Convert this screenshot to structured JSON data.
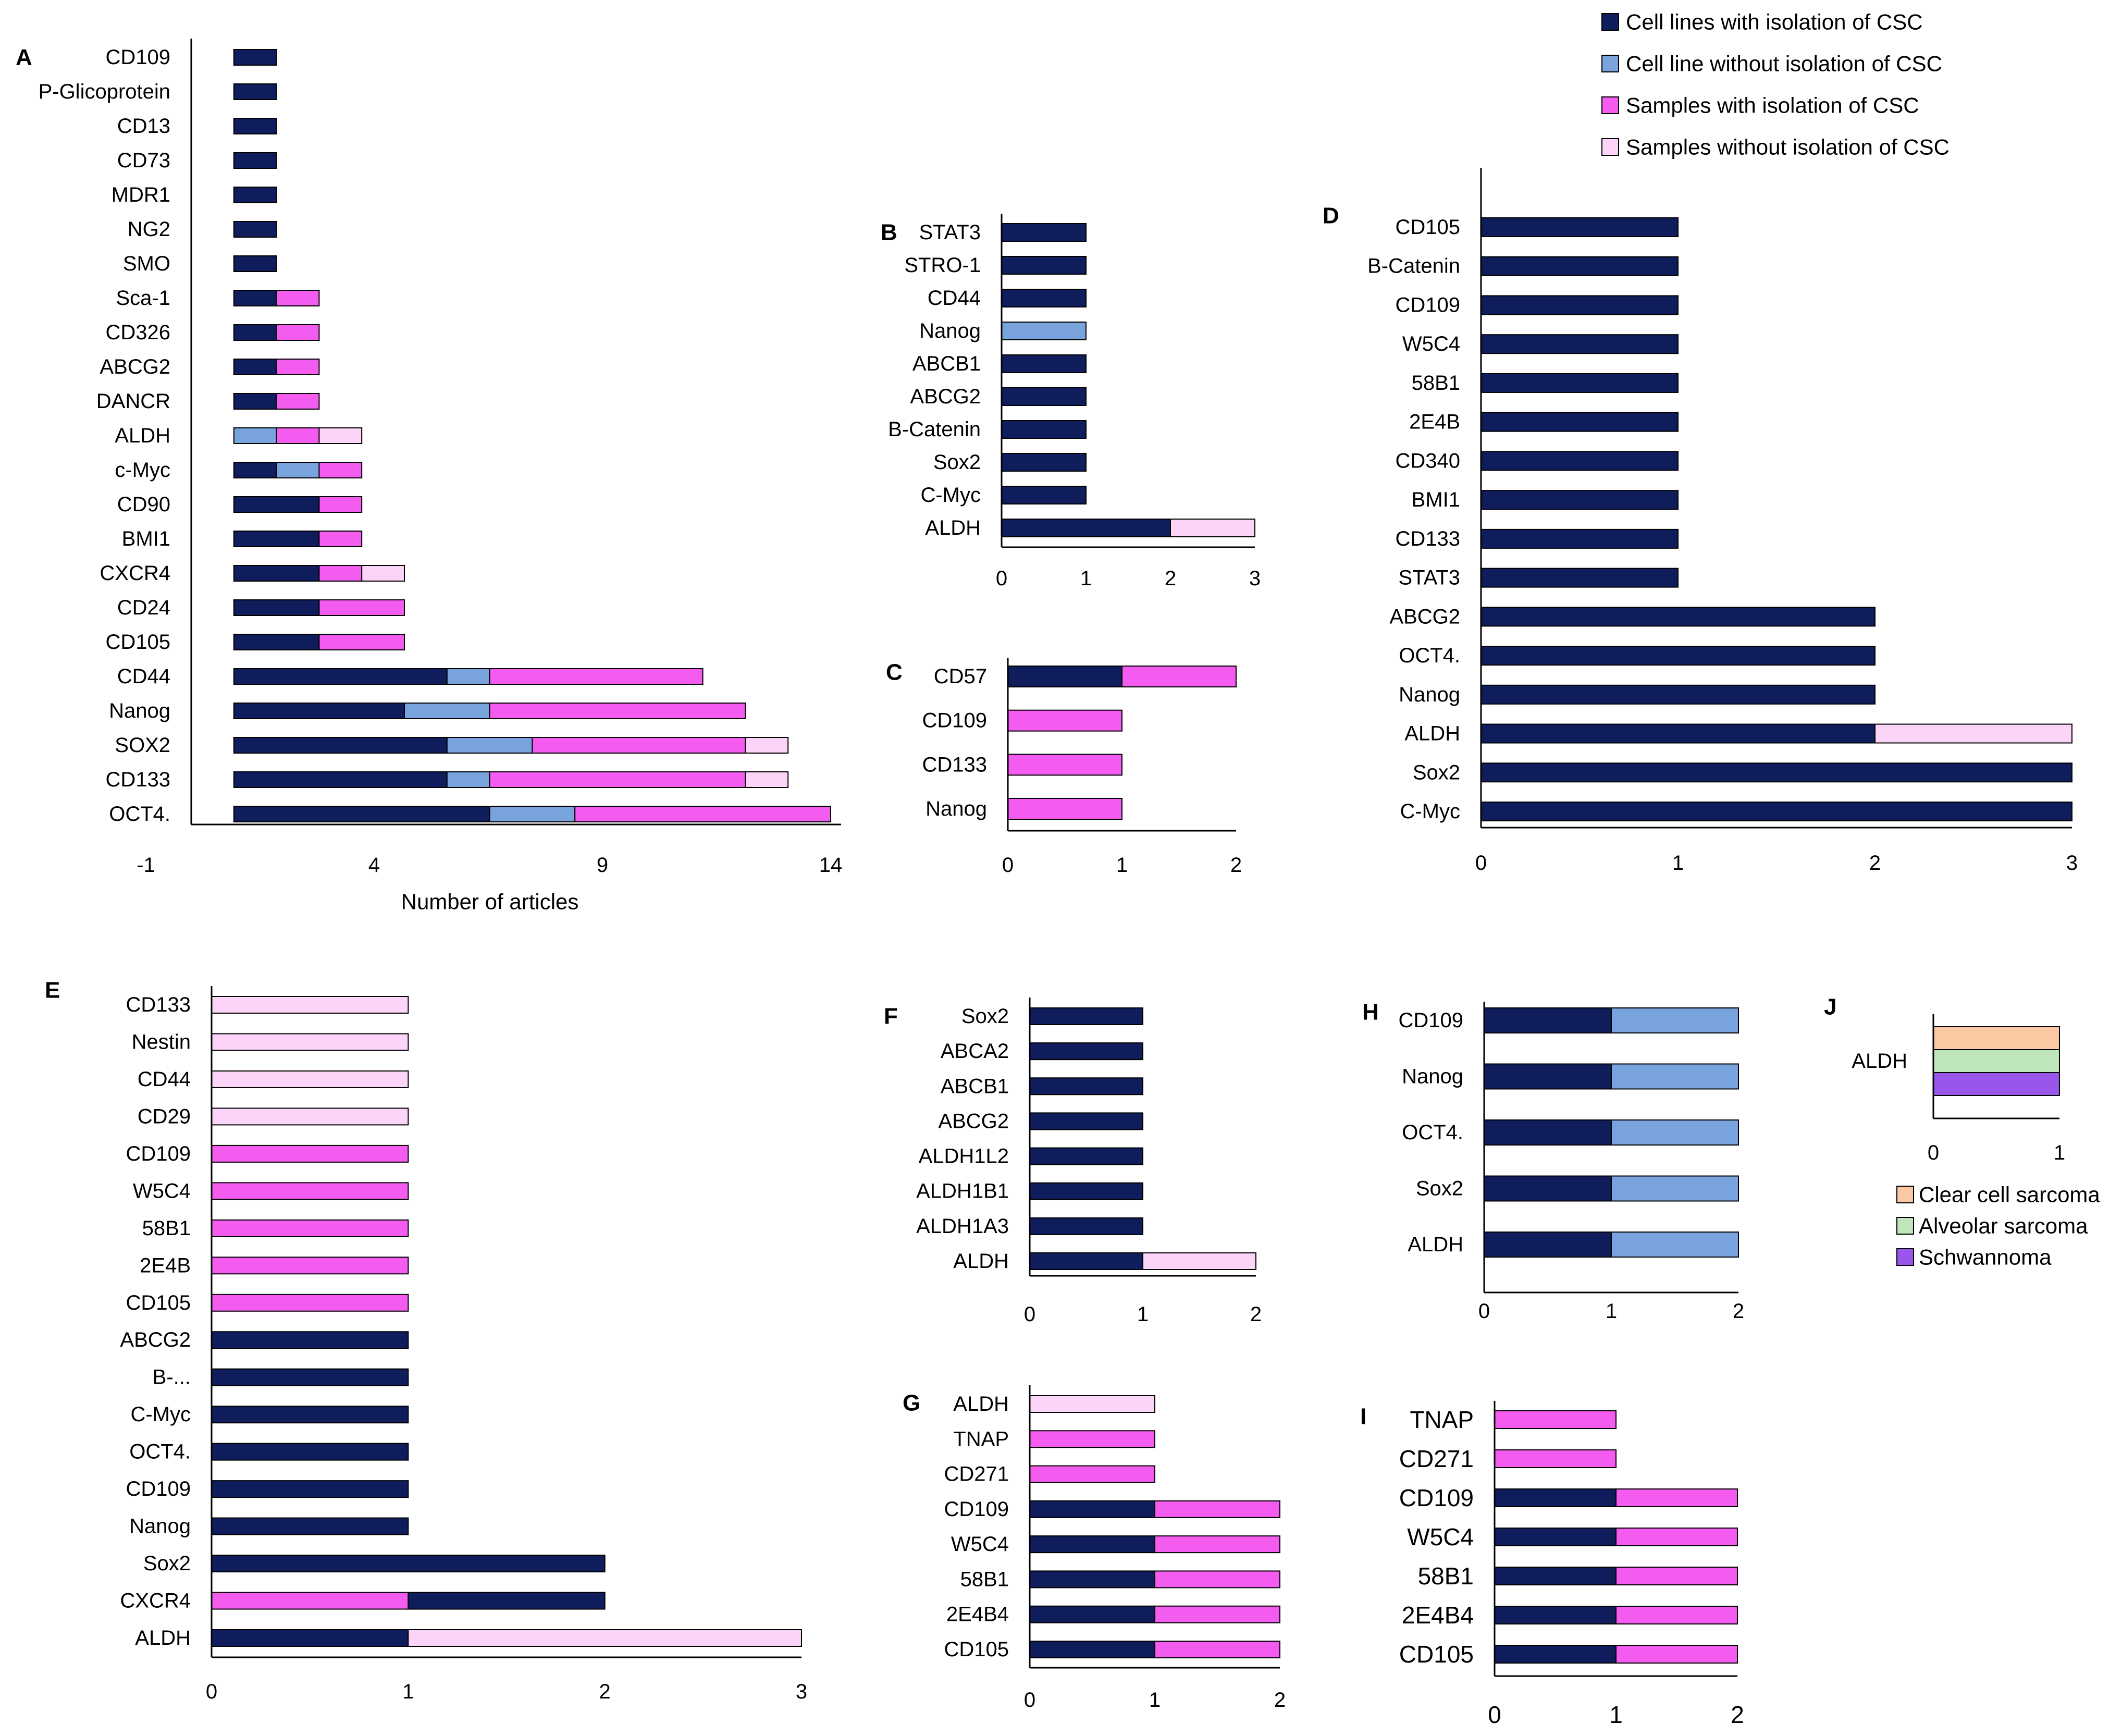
{
  "colors": {
    "cl_iso": "#0f1d5c",
    "cl_no": "#79a3dc",
    "s_iso": "#f45cf0",
    "s_no": "#fbd4f8",
    "clear_cell": "#fbc8a4",
    "alveolar": "#bfe6bb",
    "schwannoma": "#9a55ea",
    "outline": "#000000"
  },
  "legend": {
    "main": [
      {
        "key": "cl_iso",
        "label": "Cell lines with isolation of CSC"
      },
      {
        "key": "cl_no",
        "label": "Cell line without isolation of CSC"
      },
      {
        "key": "s_iso",
        "label": "Samples with isolation of CSC"
      },
      {
        "key": "s_no",
        "label": "Samples without isolation of CSC"
      }
    ],
    "j": [
      {
        "key": "clear_cell",
        "label": "Clear cell sarcoma"
      },
      {
        "key": "alveolar",
        "label": "Alveolar sarcoma"
      },
      {
        "key": "schwannoma",
        "label": "Schwannoma"
      }
    ]
  },
  "chart_data": [
    {
      "panel": "A",
      "type": "bar",
      "orientation": "horizontal",
      "stacked": true,
      "xlabel": "Number of articles",
      "xlim": [
        -1,
        14
      ],
      "xticks": [
        "-1",
        "4",
        "9",
        "14"
      ],
      "categories": [
        "CD109",
        "P-Glicoprotein",
        "CD13",
        "CD73",
        "MDR1",
        "NG2",
        "SMO",
        "Sca-1",
        "CD326",
        "ABCG2",
        "DANCR",
        "ALDH",
        "c-Myc",
        "CD90",
        "BMI1",
        "CXCR4",
        "CD24",
        "CD105",
        "CD44",
        "Nanog",
        "SOX2",
        "CD133",
        "OCT4."
      ],
      "series": [
        {
          "key": "cl_iso",
          "values": [
            1,
            1,
            1,
            1,
            1,
            1,
            1,
            1,
            1,
            1,
            1,
            0,
            1,
            2,
            2,
            2,
            2,
            2,
            5,
            4,
            5,
            5,
            6
          ]
        },
        {
          "key": "cl_no",
          "values": [
            0,
            0,
            0,
            0,
            0,
            0,
            0,
            0,
            0,
            0,
            0,
            1,
            1,
            0,
            0,
            0,
            0,
            0,
            1,
            2,
            2,
            1,
            2
          ]
        },
        {
          "key": "s_iso",
          "values": [
            0,
            0,
            0,
            0,
            0,
            0,
            0,
            1,
            1,
            1,
            1,
            1,
            1,
            1,
            1,
            1,
            2,
            2,
            5,
            6,
            5,
            6,
            6
          ]
        },
        {
          "key": "s_no",
          "values": [
            0,
            0,
            0,
            0,
            0,
            0,
            0,
            0,
            0,
            0,
            0,
            1,
            0,
            0,
            0,
            1,
            0,
            0,
            0,
            0,
            1,
            1,
            0
          ]
        }
      ]
    },
    {
      "panel": "B",
      "type": "bar",
      "orientation": "horizontal",
      "stacked": true,
      "xlim": [
        0,
        3
      ],
      "xticks": [
        "0",
        "1",
        "2",
        "3"
      ],
      "categories": [
        "STAT3",
        "STRO-1",
        "CD44",
        "Nanog",
        "ABCB1",
        "ABCG2",
        "B-Catenin",
        "Sox2",
        "C-Myc",
        "ALDH"
      ],
      "series": [
        {
          "key": "cl_iso",
          "values": [
            1,
            1,
            1,
            0,
            1,
            1,
            1,
            1,
            1,
            2
          ]
        },
        {
          "key": "cl_no",
          "values": [
            0,
            0,
            0,
            1,
            0,
            0,
            0,
            0,
            0,
            0
          ]
        },
        {
          "key": "s_no",
          "values": [
            0,
            0,
            0,
            0,
            0,
            0,
            0,
            0,
            0,
            1
          ]
        }
      ]
    },
    {
      "panel": "C",
      "type": "bar",
      "orientation": "horizontal",
      "stacked": true,
      "xlim": [
        0,
        2
      ],
      "xticks": [
        "0",
        "1",
        "2"
      ],
      "categories": [
        "CD57",
        "CD109",
        "CD133",
        "Nanog"
      ],
      "series": [
        {
          "key": "cl_iso",
          "values": [
            1,
            0,
            0,
            0
          ]
        },
        {
          "key": "s_iso",
          "values": [
            1,
            1,
            1,
            1
          ]
        }
      ]
    },
    {
      "panel": "D",
      "type": "bar",
      "orientation": "horizontal",
      "stacked": true,
      "xlim": [
        0,
        3
      ],
      "xticks": [
        "0",
        "1",
        "2",
        "3"
      ],
      "categories": [
        "CD105",
        "B-Catenin",
        "CD109",
        "W5C4",
        "58B1",
        "2E4B",
        "CD340",
        "BMI1",
        "CD133",
        "STAT3",
        "ABCG2",
        "OCT4.",
        "Nanog",
        "ALDH",
        "Sox2",
        "C-Myc"
      ],
      "series": [
        {
          "key": "cl_iso",
          "values": [
            1,
            1,
            1,
            1,
            1,
            1,
            1,
            1,
            1,
            1,
            2,
            2,
            2,
            2,
            3,
            3
          ]
        },
        {
          "key": "s_no",
          "values": [
            0,
            0,
            0,
            0,
            0,
            0,
            0,
            0,
            0,
            0,
            0,
            0,
            0,
            1,
            0,
            0
          ]
        }
      ]
    },
    {
      "panel": "E",
      "type": "bar",
      "orientation": "horizontal",
      "stacked": true,
      "xlim": [
        0,
        3
      ],
      "xticks": [
        "0",
        "1",
        "2",
        "3"
      ],
      "categories": [
        "CD133",
        "Nestin",
        "CD44",
        "CD29",
        "CD109",
        "W5C4",
        "58B1",
        "2E4B",
        "CD105",
        "ABCG2",
        "B-...",
        "C-Myc",
        "OCT4.",
        "CD109",
        "Nanog",
        "Sox2",
        "CXCR4",
        "ALDH"
      ],
      "segments": [
        [
          [
            "s_no",
            1
          ]
        ],
        [
          [
            "s_no",
            1
          ]
        ],
        [
          [
            "s_no",
            1
          ]
        ],
        [
          [
            "s_no",
            1
          ]
        ],
        [
          [
            "s_iso",
            1
          ]
        ],
        [
          [
            "s_iso",
            1
          ]
        ],
        [
          [
            "s_iso",
            1
          ]
        ],
        [
          [
            "s_iso",
            1
          ]
        ],
        [
          [
            "s_iso",
            1
          ]
        ],
        [
          [
            "cl_iso",
            1
          ]
        ],
        [
          [
            "cl_iso",
            1
          ]
        ],
        [
          [
            "cl_iso",
            1
          ]
        ],
        [
          [
            "cl_iso",
            1
          ]
        ],
        [
          [
            "cl_iso",
            1
          ]
        ],
        [
          [
            "cl_iso",
            1
          ]
        ],
        [
          [
            "cl_iso",
            2
          ]
        ],
        [
          [
            "s_iso",
            1
          ],
          [
            "cl_iso",
            1
          ]
        ],
        [
          [
            "cl_iso",
            1
          ],
          [
            "s_no",
            2
          ]
        ]
      ]
    },
    {
      "panel": "F",
      "type": "bar",
      "orientation": "horizontal",
      "stacked": true,
      "xlim": [
        0,
        2
      ],
      "xticks": [
        "0",
        "1",
        "2"
      ],
      "categories": [
        "Sox2",
        "ABCA2",
        "ABCB1",
        "ABCG2",
        "ALDH1L2",
        "ALDH1B1",
        "ALDH1A3",
        "ALDH"
      ],
      "series": [
        {
          "key": "cl_iso",
          "values": [
            1,
            1,
            1,
            1,
            1,
            1,
            1,
            1
          ]
        },
        {
          "key": "s_no",
          "values": [
            0,
            0,
            0,
            0,
            0,
            0,
            0,
            1
          ]
        }
      ]
    },
    {
      "panel": "G",
      "type": "bar",
      "orientation": "horizontal",
      "stacked": true,
      "xlim": [
        0,
        2
      ],
      "xticks": [
        "0",
        "1",
        "2"
      ],
      "categories": [
        "ALDH",
        "TNAP",
        "CD271",
        "CD109",
        "W5C4",
        "58B1",
        "2E4B4",
        "CD105"
      ],
      "series": [
        {
          "key": "cl_iso",
          "values": [
            0,
            0,
            0,
            1,
            1,
            1,
            1,
            1
          ]
        },
        {
          "key": "s_iso",
          "values": [
            0,
            1,
            1,
            1,
            1,
            1,
            1,
            1
          ]
        },
        {
          "key": "s_no",
          "values": [
            1,
            0,
            0,
            0,
            0,
            0,
            0,
            0
          ]
        }
      ]
    },
    {
      "panel": "H",
      "type": "bar",
      "orientation": "horizontal",
      "stacked": true,
      "xlim": [
        0,
        2
      ],
      "xticks": [
        "0",
        "1",
        "2"
      ],
      "categories": [
        "CD109",
        "Nanog",
        "OCT4.",
        "Sox2",
        "ALDH"
      ],
      "series": [
        {
          "key": "cl_iso",
          "values": [
            1,
            1,
            1,
            1,
            1
          ]
        },
        {
          "key": "cl_no",
          "values": [
            1,
            1,
            1,
            1,
            1
          ]
        }
      ]
    },
    {
      "panel": "I",
      "type": "bar",
      "orientation": "horizontal",
      "stacked": true,
      "xlim": [
        0,
        2
      ],
      "xticks": [
        "0",
        "1",
        "2"
      ],
      "categories": [
        "TNAP",
        "CD271",
        "CD109",
        "W5C4",
        "58B1",
        "2E4B4",
        "CD105"
      ],
      "series": [
        {
          "key": "cl_iso",
          "values": [
            0,
            0,
            1,
            1,
            1,
            1,
            1
          ]
        },
        {
          "key": "s_iso",
          "values": [
            1,
            1,
            1,
            1,
            1,
            1,
            1
          ]
        }
      ]
    },
    {
      "panel": "J",
      "type": "bar",
      "orientation": "horizontal",
      "stacked": false,
      "xlim": [
        0,
        1
      ],
      "xticks": [
        "0",
        "1"
      ],
      "categories": [
        "ALDH"
      ],
      "series": [
        {
          "key": "clear_cell",
          "values": [
            1
          ]
        },
        {
          "key": "alveolar",
          "values": [
            1
          ]
        },
        {
          "key": "schwannoma",
          "values": [
            1
          ]
        }
      ]
    }
  ]
}
